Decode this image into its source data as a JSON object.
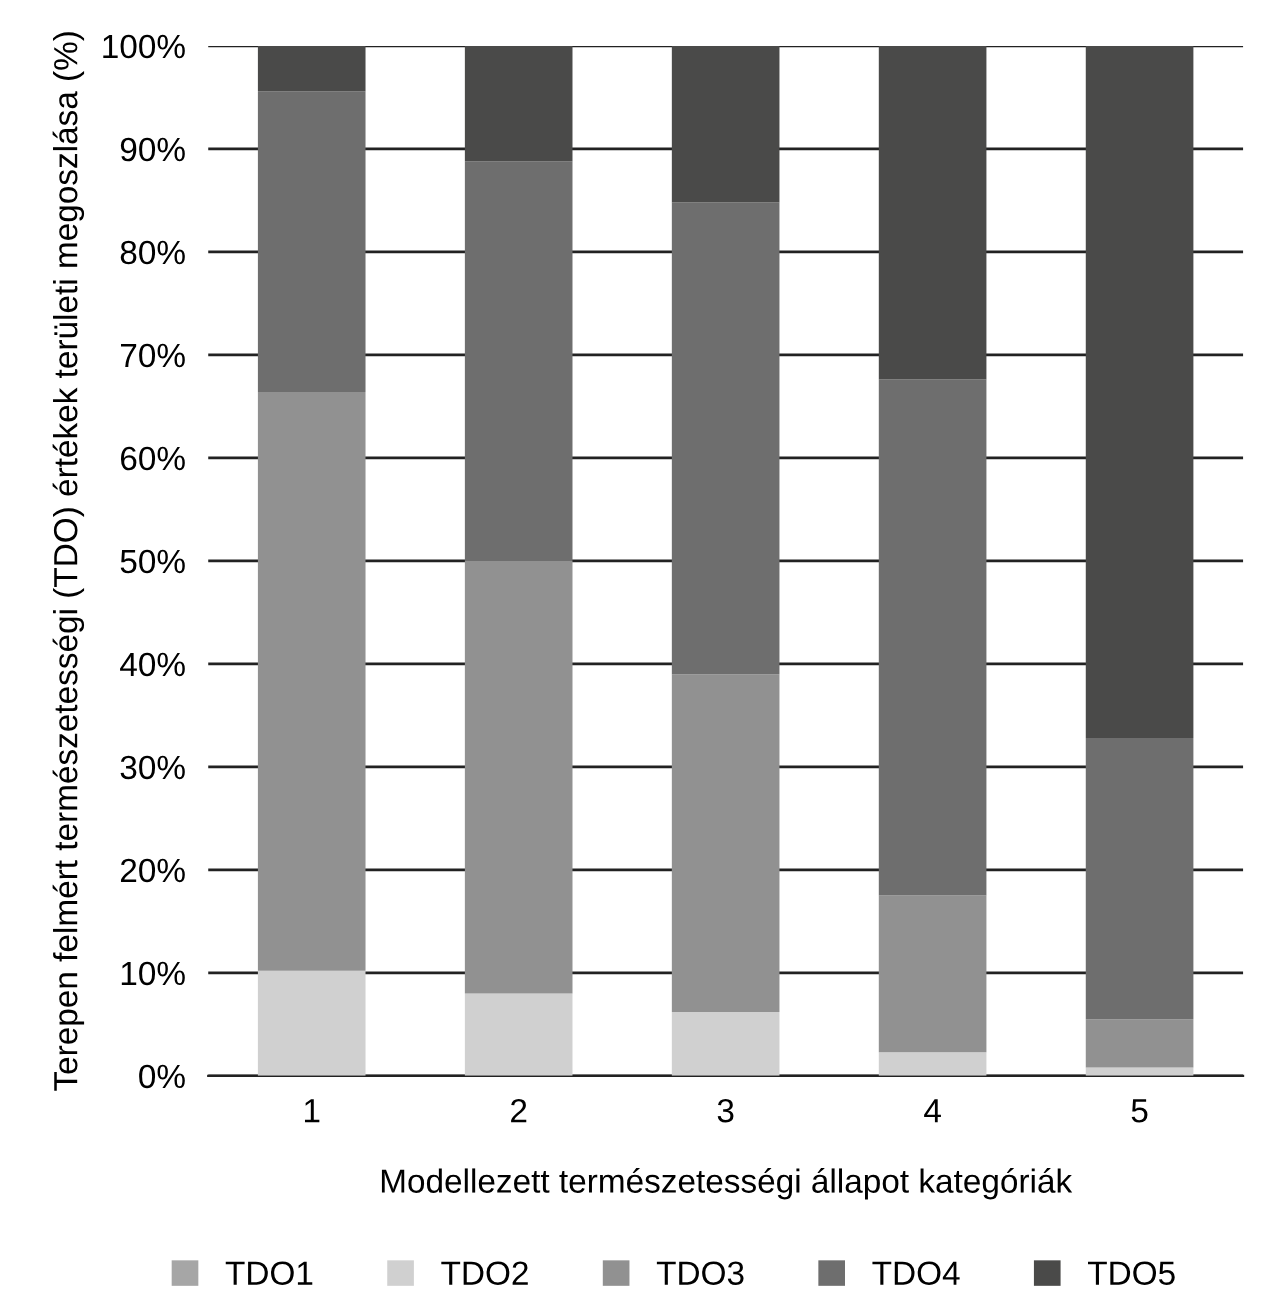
{
  "chart_data": {
    "type": "bar",
    "stacked": true,
    "xlabel": "Modellezett természetességi állapot kategóriák",
    "ylabel": "Terepen felmért természetességi (TDO) értékek területi megoszlása (%)",
    "categories": [
      "1",
      "2",
      "3",
      "4",
      "5"
    ],
    "series": [
      {
        "name": "TDO1",
        "color": "#a6a6a6",
        "values": [
          0,
          0,
          0,
          0,
          0
        ]
      },
      {
        "name": "TDO2",
        "color": "#d0d0d0",
        "values": [
          10.2,
          8.0,
          6.2,
          2.3,
          0.8
        ]
      },
      {
        "name": "TDO3",
        "color": "#919191",
        "values": [
          56.2,
          42.0,
          32.8,
          15.2,
          4.7
        ]
      },
      {
        "name": "TDO4",
        "color": "#6e6e6e",
        "values": [
          29.2,
          38.8,
          45.8,
          50.1,
          27.3
        ]
      },
      {
        "name": "TDO5",
        "color": "#4a4a49",
        "values": [
          4.4,
          11.2,
          15.2,
          32.4,
          67.2
        ]
      }
    ],
    "ylim": [
      0,
      100
    ],
    "yticks": [
      {
        "value": 0,
        "label": "0%"
      },
      {
        "value": 10,
        "label": "10%"
      },
      {
        "value": 20,
        "label": "20%"
      },
      {
        "value": 30,
        "label": "30%"
      },
      {
        "value": 40,
        "label": "40%"
      },
      {
        "value": 50,
        "label": "50%"
      },
      {
        "value": 60,
        "label": "60%"
      },
      {
        "value": 70,
        "label": "70%"
      },
      {
        "value": 80,
        "label": "80%"
      },
      {
        "value": 90,
        "label": "90%"
      },
      {
        "value": 100,
        "label": "100%"
      }
    ],
    "grid": "y",
    "legend": "bottom"
  }
}
